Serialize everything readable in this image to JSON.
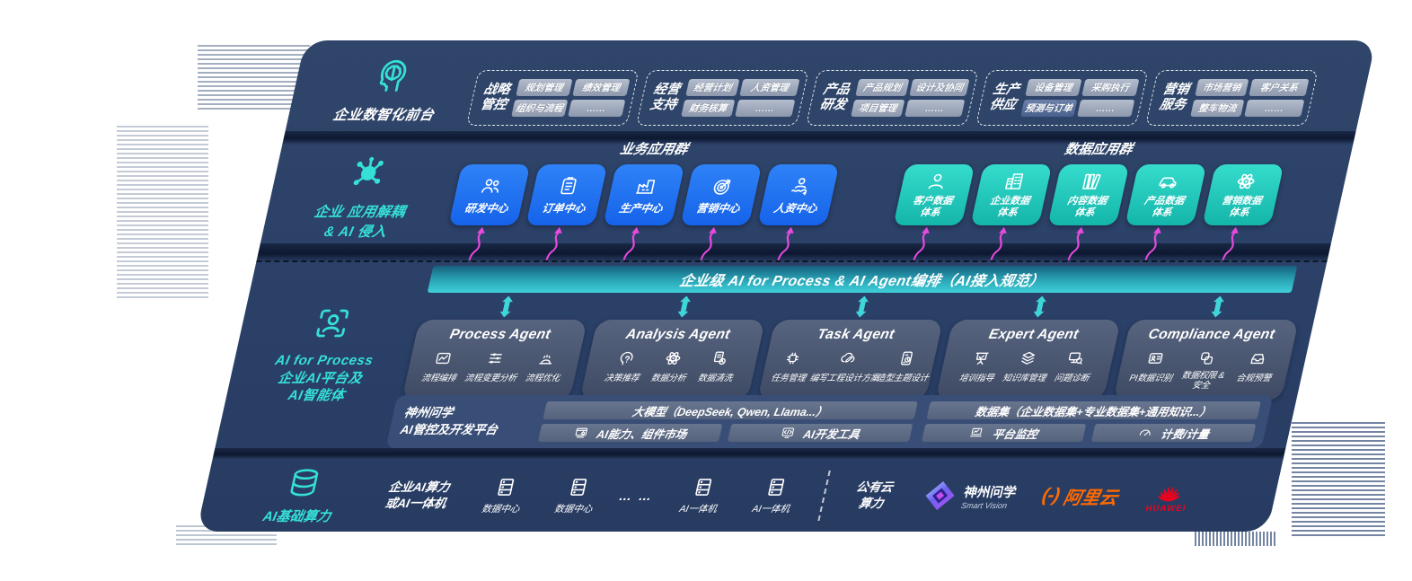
{
  "colors": {
    "navy": "#2b4067",
    "blue": "#1f6ff0",
    "teal": "#2bd5c9",
    "magenta": "#e84ae0",
    "bus_teal": "#2fc4cf",
    "orange": "#ff6a00",
    "huawei_red": "#e40521",
    "slate": "#4d5a73",
    "pill_gray": "#9aa4b8"
  },
  "front_office": {
    "label": "企业数智化前台",
    "groups": [
      {
        "label_l1": "战略",
        "label_l2": "管控",
        "items": [
          "规划管理",
          "绩效管理",
          "组织与流程",
          "……"
        ]
      },
      {
        "label_l1": "经营",
        "label_l2": "支持",
        "items": [
          "经营计划",
          "人资管理",
          "财务核算",
          "……"
        ]
      },
      {
        "label_l1": "产品",
        "label_l2": "研发",
        "items": [
          "产品规划",
          "设计及协同",
          "项目管理",
          "……"
        ]
      },
      {
        "label_l1": "生产",
        "label_l2": "供应",
        "items": [
          "设备管理",
          "采购执行",
          "预测与订单",
          "……"
        ]
      },
      {
        "label_l1": "营销",
        "label_l2": "服务",
        "items": [
          "市场营销",
          "客户关系",
          "整车物流",
          "……"
        ]
      }
    ]
  },
  "decouple_layer": {
    "label_l1": "企业 应用解耦",
    "label_l2": "& AI 侵入",
    "business_group": {
      "title": "业务应用群",
      "apps": [
        {
          "label": "研发中心",
          "icon": "people-icon"
        },
        {
          "label": "订单中心",
          "icon": "clipboard-icon"
        },
        {
          "label": "生产中心",
          "icon": "factory-icon"
        },
        {
          "label": "营销中心",
          "icon": "target-icon"
        },
        {
          "label": "人资中心",
          "icon": "hr-icon"
        }
      ]
    },
    "data_group": {
      "title": "数据应用群",
      "apps": [
        {
          "label": "客户数据",
          "label2": "体系",
          "icon": "person-icon"
        },
        {
          "label": "企业数据",
          "label2": "体系",
          "icon": "building-icon"
        },
        {
          "label": "内容数据",
          "label2": "体系",
          "icon": "books-icon"
        },
        {
          "label": "产品数据",
          "label2": "体系",
          "icon": "car-icon"
        },
        {
          "label": "营销数据",
          "label2": "体系",
          "icon": "atom-icon"
        }
      ]
    }
  },
  "ai_layer": {
    "side_l1": "AI for Process",
    "side_l2": "企业AI平台及",
    "side_l3": "AI智能体",
    "bus_title": "企业级 AI for Process & AI Agent编排（AI接入规范）",
    "agents": [
      {
        "title": "Process Agent",
        "caps": [
          {
            "label": "流程编排",
            "icon": "flow-icon"
          },
          {
            "label": "流程变更分析",
            "icon": "sliders-icon"
          },
          {
            "label": "流程优化",
            "icon": "optimize-icon"
          }
        ]
      },
      {
        "title": "Analysis Agent",
        "caps": [
          {
            "label": "决策推荐",
            "icon": "decision-icon"
          },
          {
            "label": "数据分析",
            "icon": "atom-icon"
          },
          {
            "label": "数据清洗",
            "icon": "clean-icon"
          }
        ]
      },
      {
        "title": "Task Agent",
        "caps": [
          {
            "label": "任务管理",
            "icon": "chip-icon"
          },
          {
            "label": "编写工程设计方案",
            "icon": "cloud-pen-icon"
          },
          {
            "label": "造型主题设计",
            "icon": "design-icon"
          }
        ]
      },
      {
        "title": "Expert Agent",
        "caps": [
          {
            "label": "培训指导",
            "icon": "training-icon"
          },
          {
            "label": "知识库管理",
            "icon": "layers-icon"
          },
          {
            "label": "问题诊断",
            "icon": "diagnose-icon"
          }
        ]
      },
      {
        "title": "Compliance Agent",
        "caps": [
          {
            "label": "PI数据识别",
            "icon": "idcard-icon"
          },
          {
            "label": "数据权限 & 安全",
            "icon": "security-icon"
          },
          {
            "label": "合规预警",
            "icon": "inbox-icon"
          }
        ]
      }
    ],
    "platform": {
      "brand_l1": "神州问学",
      "brand_l2": "AI管控及开发平台",
      "model_bar": "大模型（DeepSeek, Qwen, Llama...）",
      "left_items": [
        {
          "label": "AI能力、组件市场",
          "icon": "market-icon"
        },
        {
          "label": "AI开发工具",
          "icon": "devtool-icon"
        }
      ],
      "dataset_bar": "数据集（企业数据集+专业数据集+通用知识...）",
      "right_items": [
        {
          "label": "平台监控",
          "icon": "monitor-icon"
        },
        {
          "label": "计费/计量",
          "icon": "gauge-icon"
        }
      ]
    }
  },
  "infra_layer": {
    "label": "AI基础算力",
    "enterprise_l1": "企业AI算力",
    "enterprise_l2": "或AI一体机",
    "nodes": [
      {
        "label": "数据中心",
        "icon": "server-icon"
      },
      {
        "label": "数据中心",
        "icon": "server-icon"
      },
      {
        "label": "… …",
        "icon": ""
      },
      {
        "label": "AI一体机",
        "icon": "server-icon"
      },
      {
        "label": "AI一体机",
        "icon": "server-icon"
      }
    ],
    "cloud_l1": "公有云",
    "cloud_l2": "算力",
    "vendors": [
      {
        "name": "神州问学",
        "sub": "Smart Vision"
      },
      {
        "mark": "(-)",
        "name": "阿里云"
      },
      {
        "name": "HUAWEI"
      }
    ]
  }
}
